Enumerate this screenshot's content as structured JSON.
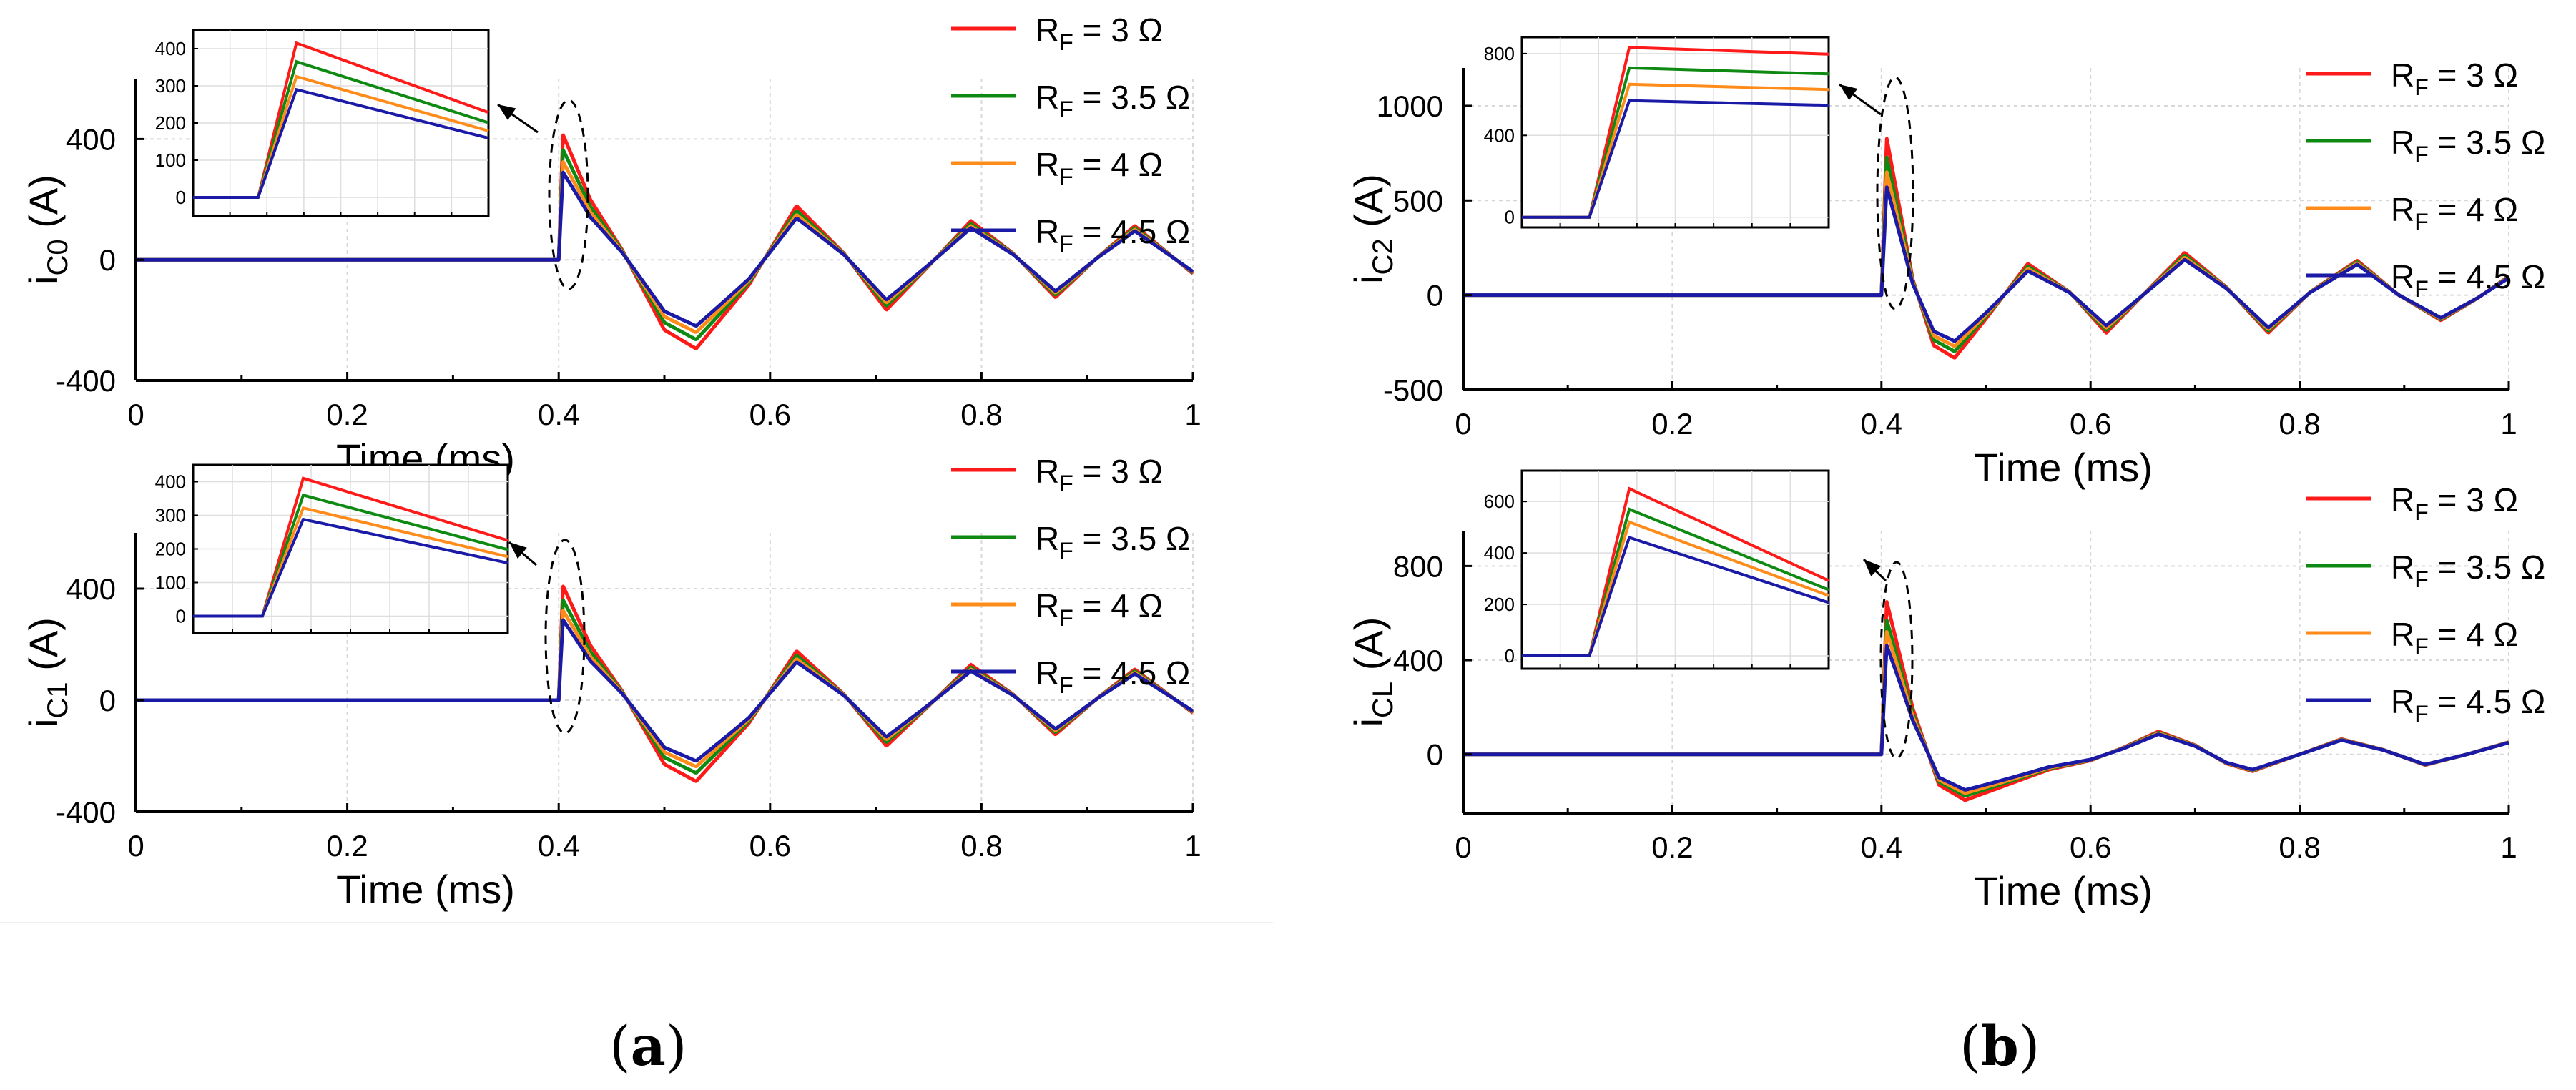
{
  "figure": {
    "sublabels": [
      {
        "open": "(",
        "letter": "a",
        "close": ")"
      },
      {
        "open": "(",
        "letter": "b",
        "close": ")"
      }
    ]
  },
  "legend_entries": [
    {
      "sym": "R",
      "sub": "F",
      "text": " = 3 Ω",
      "color": "#ff1a1a"
    },
    {
      "sym": "R",
      "sub": "F",
      "text": " = 3.5 Ω",
      "color": "#0e8a12"
    },
    {
      "sym": "R",
      "sub": "F",
      "text": " = 4 Ω",
      "color": "#ff8c1a"
    },
    {
      "sym": "R",
      "sub": "F",
      "text": " = 4.5 Ω",
      "color": "#1a1aa6"
    }
  ],
  "chart_data": [
    {
      "id": "iC0",
      "type": "line",
      "ylabel": {
        "main": "i",
        "sub": "C0",
        "unit": " (A)"
      },
      "xlabel": "Time (ms)",
      "xlim": [
        0,
        1
      ],
      "ylim": [
        -400,
        600
      ],
      "xticks": [
        0,
        0.2,
        0.4,
        0.6,
        0.8,
        1
      ],
      "xtick_labels": [
        "0",
        "0.2",
        "0.4",
        "0.6",
        "0.8",
        "1"
      ],
      "yticks": [
        -400,
        0,
        400
      ],
      "ytick_labels": [
        "-400",
        "0",
        "400"
      ],
      "event_time": 0.4,
      "envelope_tau": 0.78,
      "waveform": [
        [
          0.4,
          0
        ],
        [
          0.404,
          1
        ],
        [
          0.43,
          0.48
        ],
        [
          0.46,
          0.08
        ],
        [
          0.5,
          -0.56
        ],
        [
          0.53,
          -0.71
        ],
        [
          0.58,
          -0.2
        ],
        [
          0.625,
          0.43
        ],
        [
          0.67,
          0.05
        ],
        [
          0.71,
          -0.4
        ],
        [
          0.75,
          -0.05
        ],
        [
          0.79,
          0.31
        ],
        [
          0.83,
          0.05
        ],
        [
          0.87,
          -0.3
        ],
        [
          0.91,
          0.02
        ],
        [
          0.945,
          0.27
        ],
        [
          1.0,
          -0.11
        ]
      ],
      "series": [
        {
          "name": "RF = 3 Ω",
          "peak": 415,
          "color": "#ff1a1a"
        },
        {
          "name": "RF = 3.5 Ω",
          "peak": 365,
          "color": "#0e8a12"
        },
        {
          "name": "RF = 4 Ω",
          "peak": 325,
          "color": "#ff8c1a"
        },
        {
          "name": "RF = 4.5 Ω",
          "peak": 290,
          "color": "#1a1aa6"
        }
      ],
      "inset": {
        "ylim": [
          -50,
          450
        ],
        "yticks": [
          0,
          100,
          200,
          300,
          400
        ],
        "ytick_labels": [
          "0",
          "100",
          "200",
          "300",
          "400"
        ],
        "decay": 0.55
      }
    },
    {
      "id": "iC1",
      "type": "line",
      "ylabel": {
        "main": "i",
        "sub": "C1",
        "unit": " (A)"
      },
      "xlabel": "Time (ms)",
      "xlim": [
        0,
        1
      ],
      "ylim": [
        -400,
        600
      ],
      "xticks": [
        0,
        0.2,
        0.4,
        0.6,
        0.8,
        1
      ],
      "xtick_labels": [
        "0",
        "0.2",
        "0.4",
        "0.6",
        "0.8",
        "1"
      ],
      "yticks": [
        -400,
        0,
        400
      ],
      "ytick_labels": [
        "-400",
        "0",
        "400"
      ],
      "event_time": 0.4,
      "envelope_tau": 0.78,
      "waveform": [
        [
          0.4,
          0
        ],
        [
          0.404,
          1
        ],
        [
          0.43,
          0.48
        ],
        [
          0.46,
          0.08
        ],
        [
          0.5,
          -0.56
        ],
        [
          0.53,
          -0.71
        ],
        [
          0.58,
          -0.2
        ],
        [
          0.625,
          0.43
        ],
        [
          0.67,
          0.05
        ],
        [
          0.71,
          -0.4
        ],
        [
          0.75,
          -0.05
        ],
        [
          0.79,
          0.31
        ],
        [
          0.83,
          0.05
        ],
        [
          0.87,
          -0.3
        ],
        [
          0.91,
          0.02
        ],
        [
          0.945,
          0.27
        ],
        [
          1.0,
          -0.11
        ]
      ],
      "series": [
        {
          "name": "RF = 3 Ω",
          "peak": 410,
          "color": "#ff1a1a"
        },
        {
          "name": "RF = 3.5 Ω",
          "peak": 360,
          "color": "#0e8a12"
        },
        {
          "name": "RF = 4 Ω",
          "peak": 322,
          "color": "#ff8c1a"
        },
        {
          "name": "RF = 4.5 Ω",
          "peak": 288,
          "color": "#1a1aa6"
        }
      ],
      "inset": {
        "ylim": [
          -50,
          450
        ],
        "yticks": [
          0,
          100,
          200,
          300,
          400
        ],
        "ytick_labels": [
          "0",
          "100",
          "200",
          "300",
          "400"
        ],
        "decay": 0.55
      }
    },
    {
      "id": "iC2",
      "type": "line",
      "ylabel": {
        "main": "i",
        "sub": "C2",
        "unit": " (A)"
      },
      "xlabel": "Time (ms)",
      "xlim": [
        0,
        1
      ],
      "ylim": [
        -500,
        1200
      ],
      "xticks": [
        0,
        0.2,
        0.4,
        0.6,
        0.8,
        1
      ],
      "xtick_labels": [
        "0",
        "0.2",
        "0.4",
        "0.6",
        "0.8",
        "1"
      ],
      "yticks": [
        -500,
        0,
        500,
        1000
      ],
      "ytick_labels": [
        "-500",
        "0",
        "500",
        "1000"
      ],
      "event_time": 0.4,
      "envelope_tau": 0.45,
      "waveform": [
        [
          0.4,
          0
        ],
        [
          0.405,
          1
        ],
        [
          0.43,
          0.1
        ],
        [
          0.45,
          -0.32
        ],
        [
          0.47,
          -0.4
        ],
        [
          0.5,
          -0.15
        ],
        [
          0.54,
          0.2
        ],
        [
          0.58,
          0.02
        ],
        [
          0.615,
          -0.24
        ],
        [
          0.65,
          0.0
        ],
        [
          0.69,
          0.27
        ],
        [
          0.73,
          0.05
        ],
        [
          0.77,
          -0.24
        ],
        [
          0.81,
          0.02
        ],
        [
          0.855,
          0.22
        ],
        [
          0.895,
          0.0
        ],
        [
          0.935,
          -0.16
        ],
        [
          0.97,
          -0.02
        ],
        [
          1.0,
          0.12
        ]
      ],
      "series": [
        {
          "name": "RF = 3 Ω",
          "peak": 830,
          "color": "#ff1a1a"
        },
        {
          "name": "RF = 3.5 Ω",
          "peak": 730,
          "color": "#0e8a12"
        },
        {
          "name": "RF = 4 Ω",
          "peak": 650,
          "color": "#ff8c1a"
        },
        {
          "name": "RF = 4.5 Ω",
          "peak": 570,
          "color": "#1a1aa6"
        }
      ],
      "inset": {
        "ylim": [
          -50,
          880
        ],
        "yticks": [
          0,
          400,
          800
        ],
        "ytick_labels": [
          "0",
          "400",
          "800"
        ],
        "decay": 0.96
      }
    },
    {
      "id": "iCL",
      "type": "line",
      "ylabel": {
        "main": "i",
        "sub": "CL",
        "unit": " (A)"
      },
      "xlabel": "Time (ms)",
      "xlim": [
        0,
        1
      ],
      "ylim": [
        -250,
        950
      ],
      "xticks": [
        0,
        0.2,
        0.4,
        0.6,
        0.8,
        1
      ],
      "xtick_labels": [
        "0",
        "0.2",
        "0.4",
        "0.6",
        "0.8",
        "1"
      ],
      "yticks": [
        0,
        400,
        800
      ],
      "ytick_labels": [
        "0",
        "400",
        "800"
      ],
      "event_time": 0.4,
      "envelope_tau": 0.3,
      "waveform": [
        [
          0.4,
          0
        ],
        [
          0.405,
          1
        ],
        [
          0.43,
          0.3
        ],
        [
          0.455,
          -0.2
        ],
        [
          0.48,
          -0.3
        ],
        [
          0.52,
          -0.2
        ],
        [
          0.56,
          -0.1
        ],
        [
          0.6,
          -0.04
        ],
        [
          0.63,
          0.04
        ],
        [
          0.665,
          0.15
        ],
        [
          0.7,
          0.06
        ],
        [
          0.73,
          -0.06
        ],
        [
          0.755,
          -0.11
        ],
        [
          0.8,
          0.0
        ],
        [
          0.84,
          0.1
        ],
        [
          0.88,
          0.03
        ],
        [
          0.92,
          -0.07
        ],
        [
          0.96,
          0.0
        ],
        [
          1.0,
          0.08
        ]
      ],
      "series": [
        {
          "name": "RF = 3 Ω",
          "peak": 650,
          "color": "#ff1a1a"
        },
        {
          "name": "RF = 3.5 Ω",
          "peak": 570,
          "color": "#0e8a12"
        },
        {
          "name": "RF = 4 Ω",
          "peak": 520,
          "color": "#ff8c1a"
        },
        {
          "name": "RF = 4.5 Ω",
          "peak": 460,
          "color": "#1a1aa6"
        }
      ],
      "inset": {
        "ylim": [
          -50,
          720
        ],
        "yticks": [
          0,
          200,
          400,
          600
        ],
        "ytick_labels": [
          "0",
          "200",
          "400",
          "600"
        ],
        "decay": 0.45
      }
    }
  ]
}
